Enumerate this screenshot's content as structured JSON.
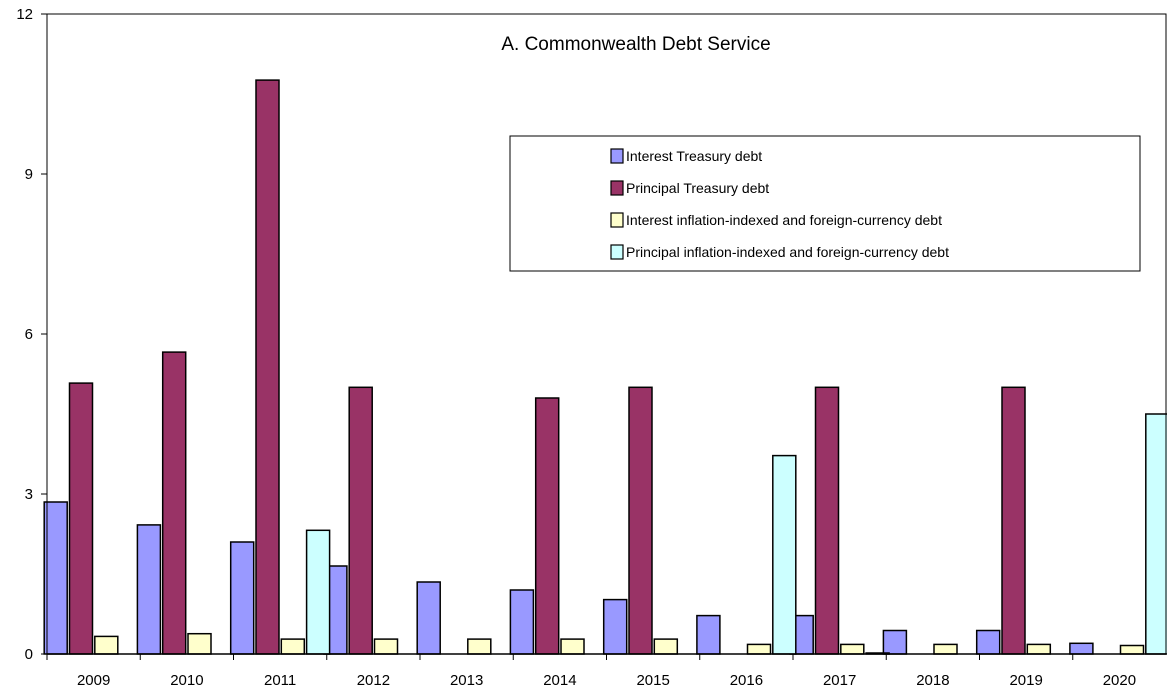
{
  "chart_data": {
    "type": "bar",
    "title": "A. Commonwealth Debt Service",
    "xlabel": "",
    "ylabel": "",
    "ylim": [
      0,
      12
    ],
    "yticks": [
      "0",
      "3",
      "6",
      "9",
      "12"
    ],
    "grid": false,
    "legend_position": "top-right",
    "categories": [
      "2009",
      "2010",
      "2011",
      "2012",
      "2013",
      "2014",
      "2015",
      "2016",
      "2017",
      "2018",
      "2019",
      "2020"
    ],
    "series": [
      {
        "name": "Interest Treasury debt",
        "color": "#9999FF",
        "values": [
          2.85,
          2.42,
          2.1,
          1.65,
          1.35,
          1.2,
          1.02,
          0.72,
          0.72,
          0.44,
          0.44,
          0.2
        ]
      },
      {
        "name": "Principal Treasury debt",
        "color": "#993366",
        "values": [
          5.08,
          5.66,
          10.76,
          5.0,
          0,
          4.8,
          5.0,
          0,
          5.0,
          0,
          5.0,
          0
        ]
      },
      {
        "name": "Interest inflation-indexed and foreign-currency debt",
        "color": "#FFFFCC",
        "values": [
          0.33,
          0.38,
          0.28,
          0.28,
          0.28,
          0.28,
          0.28,
          0.18,
          0.18,
          0.18,
          0.18,
          0.16
        ]
      },
      {
        "name": "Principal inflation-indexed and foreign-currency debt",
        "color": "#CCFFFF",
        "values": [
          0,
          0,
          2.32,
          0,
          0,
          0,
          0,
          3.72,
          0.01,
          0,
          0,
          4.5
        ]
      }
    ]
  }
}
